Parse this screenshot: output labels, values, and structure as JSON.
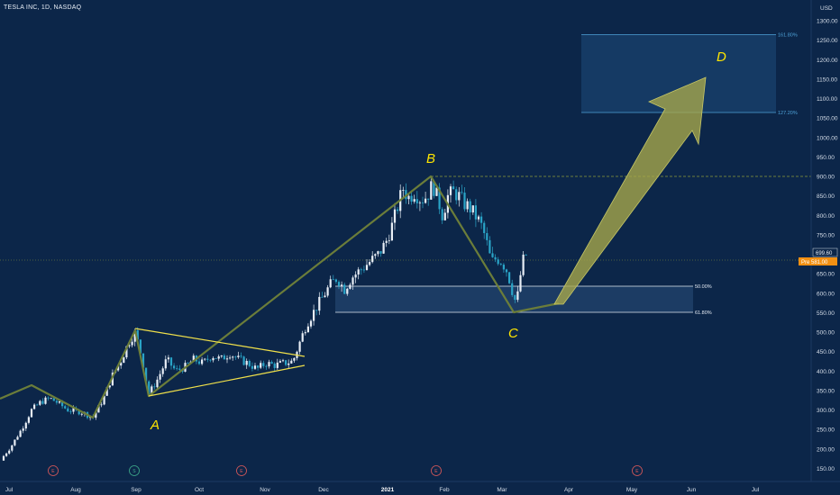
{
  "header": {
    "title": "TESLA INC, 1D, NASDAQ",
    "currency": "USD"
  },
  "chart_data": {
    "type": "candlestick",
    "y_axis": {
      "ticks": [
        "1300.00",
        "1250.00",
        "1200.00",
        "1150.00",
        "1100.00",
        "1050.00",
        "1000.00",
        "950.00",
        "900.00",
        "850.00",
        "800.00",
        "750.00",
        "700.00",
        "650.00",
        "600.00",
        "550.00",
        "500.00",
        "450.00",
        "400.00",
        "350.00",
        "300.00",
        "250.00",
        "200.00",
        "150.00"
      ],
      "ylim": [
        130,
        1320
      ]
    },
    "x_axis": {
      "ticks": [
        "Jul",
        "Aug",
        "Sep",
        "Oct",
        "Nov",
        "Dec",
        "2021",
        "Feb",
        "Mar",
        "Apr",
        "May",
        "Jun",
        "Jul"
      ],
      "bold_ticks": [
        "2021"
      ]
    },
    "last_price_label": "699.60",
    "pre_market_label": "Pre 581.00",
    "fib_levels": [
      {
        "label": "161.80%",
        "value": 1262
      },
      {
        "label": "127.20%",
        "value": 1060
      },
      {
        "label": "50.00%",
        "value": 612
      },
      {
        "label": "61.80%",
        "value": 545
      }
    ],
    "wave_labels": [
      "A",
      "B",
      "C",
      "D"
    ],
    "event_badges": [
      {
        "text": "E",
        "kind": "earnings"
      },
      {
        "text": "S",
        "kind": "split"
      },
      {
        "text": "E",
        "kind": "earnings"
      },
      {
        "text": "E",
        "kind": "earnings"
      },
      {
        "text": "E",
        "kind": "earnings"
      }
    ],
    "colors": {
      "background": "#0c2649",
      "up": "#e8eef6",
      "down": "#2aa4c7",
      "pattern_line": "#6b7d3a",
      "triangle": "#f0e04a",
      "arrow": "#b6b84a"
    },
    "price_path": [
      {
        "x": 0,
        "y": 170
      },
      {
        "x": 12,
        "y": 205
      },
      {
        "x": 25,
        "y": 255
      },
      {
        "x": 35,
        "y": 300
      },
      {
        "x": 45,
        "y": 320
      },
      {
        "x": 55,
        "y": 330
      },
      {
        "x": 63,
        "y": 320
      },
      {
        "x": 75,
        "y": 300
      },
      {
        "x": 90,
        "y": 295
      },
      {
        "x": 103,
        "y": 280
      },
      {
        "x": 115,
        "y": 330
      },
      {
        "x": 125,
        "y": 390
      },
      {
        "x": 135,
        "y": 430
      },
      {
        "x": 142,
        "y": 470
      },
      {
        "x": 150,
        "y": 500
      },
      {
        "x": 158,
        "y": 430
      },
      {
        "x": 165,
        "y": 340
      },
      {
        "x": 175,
        "y": 380
      },
      {
        "x": 185,
        "y": 430
      },
      {
        "x": 195,
        "y": 400
      },
      {
        "x": 205,
        "y": 410
      },
      {
        "x": 215,
        "y": 430
      },
      {
        "x": 225,
        "y": 420
      },
      {
        "x": 235,
        "y": 440
      },
      {
        "x": 245,
        "y": 430
      },
      {
        "x": 255,
        "y": 445
      },
      {
        "x": 265,
        "y": 430
      },
      {
        "x": 275,
        "y": 420
      },
      {
        "x": 285,
        "y": 405
      },
      {
        "x": 295,
        "y": 420
      },
      {
        "x": 305,
        "y": 415
      },
      {
        "x": 315,
        "y": 420
      },
      {
        "x": 325,
        "y": 425
      },
      {
        "x": 332,
        "y": 470
      },
      {
        "x": 340,
        "y": 520
      },
      {
        "x": 350,
        "y": 560
      },
      {
        "x": 358,
        "y": 590
      },
      {
        "x": 366,
        "y": 620
      },
      {
        "x": 374,
        "y": 640
      },
      {
        "x": 382,
        "y": 610
      },
      {
        "x": 390,
        "y": 640
      },
      {
        "x": 400,
        "y": 660
      },
      {
        "x": 410,
        "y": 680
      },
      {
        "x": 420,
        "y": 700
      },
      {
        "x": 428,
        "y": 730
      },
      {
        "x": 436,
        "y": 780
      },
      {
        "x": 442,
        "y": 830
      },
      {
        "x": 447,
        "y": 870
      },
      {
        "x": 453,
        "y": 845
      },
      {
        "x": 460,
        "y": 860
      },
      {
        "x": 467,
        "y": 840
      },
      {
        "x": 474,
        "y": 850
      },
      {
        "x": 480,
        "y": 880
      },
      {
        "x": 486,
        "y": 840
      },
      {
        "x": 491,
        "y": 800
      },
      {
        "x": 497,
        "y": 850
      },
      {
        "x": 503,
        "y": 860
      },
      {
        "x": 509,
        "y": 850
      },
      {
        "x": 515,
        "y": 830
      },
      {
        "x": 521,
        "y": 820
      },
      {
        "x": 527,
        "y": 800
      },
      {
        "x": 533,
        "y": 780
      },
      {
        "x": 539,
        "y": 740
      },
      {
        "x": 545,
        "y": 680
      },
      {
        "x": 551,
        "y": 690
      },
      {
        "x": 557,
        "y": 680
      },
      {
        "x": 563,
        "y": 655
      },
      {
        "x": 569,
        "y": 600
      },
      {
        "x": 573,
        "y": 570
      },
      {
        "x": 577,
        "y": 640
      },
      {
        "x": 581,
        "y": 690
      },
      {
        "x": 584,
        "y": 700
      }
    ]
  }
}
